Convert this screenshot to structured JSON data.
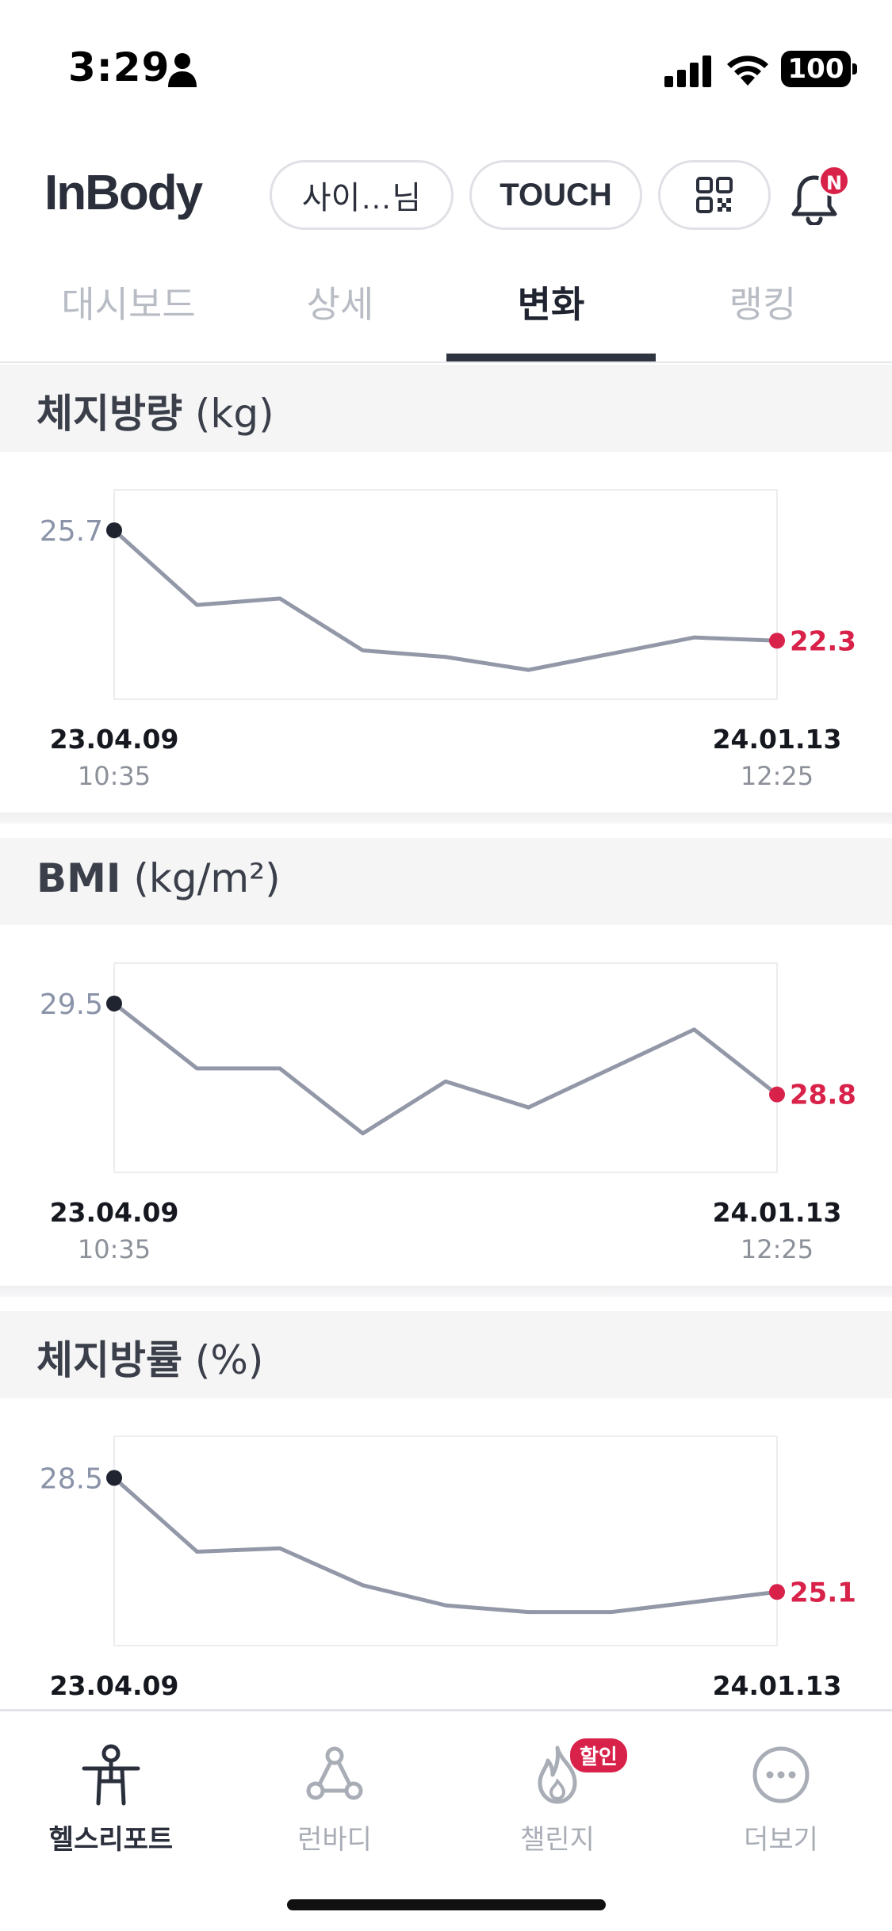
{
  "status_bar": {
    "time": "3:29",
    "battery": "100"
  },
  "header": {
    "logo": "InBody",
    "user_button": "사이…님",
    "touch_button": "TOUCH",
    "notification_badge": "N"
  },
  "tabs": [
    {
      "label": "대시보드",
      "active": false
    },
    {
      "label": "상세",
      "active": false
    },
    {
      "label": "변화",
      "active": true
    },
    {
      "label": "랭킹",
      "active": false
    }
  ],
  "sections": [
    {
      "title": "체지방량",
      "unit": "(kg)",
      "chart_data": {
        "type": "line",
        "x": [
          "23.04.09 10:35",
          "",
          "",
          "",
          "",
          "",
          "",
          "",
          "24.01.13 12:25"
        ],
        "values": [
          25.7,
          23.4,
          23.6,
          22.0,
          21.8,
          21.4,
          21.9,
          22.4,
          22.3
        ],
        "first_label": "25.7",
        "last_label": "22.3",
        "start_date": "23.04.09",
        "start_time": "10:35",
        "end_date": "24.01.13",
        "end_time": "12:25",
        "ylim": [
          20.5,
          26.7
        ],
        "line_color": "#9398a8",
        "first_point_color": "#1f2430",
        "last_point_color": "#d8224a"
      }
    },
    {
      "title": "BMI",
      "unit": "(kg/m²)",
      "chart_data": {
        "type": "line",
        "x": [
          "23.04.09 10:35",
          "",
          "",
          "",
          "",
          "",
          "",
          "",
          "24.01.13 12:25"
        ],
        "values": [
          29.5,
          29.0,
          29.0,
          28.5,
          28.9,
          28.7,
          29.0,
          29.3,
          28.8
        ],
        "first_label": "29.5",
        "last_label": "28.8",
        "start_date": "23.04.09",
        "start_time": "10:35",
        "end_date": "24.01.13",
        "end_time": "12:25",
        "ylim": [
          28.2,
          29.75
        ],
        "line_color": "#9398a8",
        "first_point_color": "#1f2430",
        "last_point_color": "#d8224a"
      }
    },
    {
      "title": "체지방률",
      "unit": "(%)",
      "chart_data": {
        "type": "line",
        "x": [
          "23.04.09 10:35",
          "",
          "",
          "",
          "",
          "",
          "",
          "",
          "24.01.13 12:25"
        ],
        "values": [
          28.5,
          26.3,
          26.4,
          25.3,
          24.7,
          24.5,
          24.5,
          24.8,
          25.1
        ],
        "first_label": "28.5",
        "last_label": "25.1",
        "start_date": "23.04.09",
        "start_time": "10:35",
        "end_date": "24.01.13",
        "end_time": "12:25",
        "ylim": [
          23.5,
          29.5
        ],
        "line_color": "#9398a8",
        "first_point_color": "#1f2430",
        "last_point_color": "#d8224a"
      }
    }
  ],
  "bottom_nav": [
    {
      "label": "헬스리포트",
      "active": true
    },
    {
      "label": "런바디",
      "active": false
    },
    {
      "label": "챌린지",
      "active": false,
      "badge": "할인"
    },
    {
      "label": "더보기",
      "active": false
    }
  ]
}
